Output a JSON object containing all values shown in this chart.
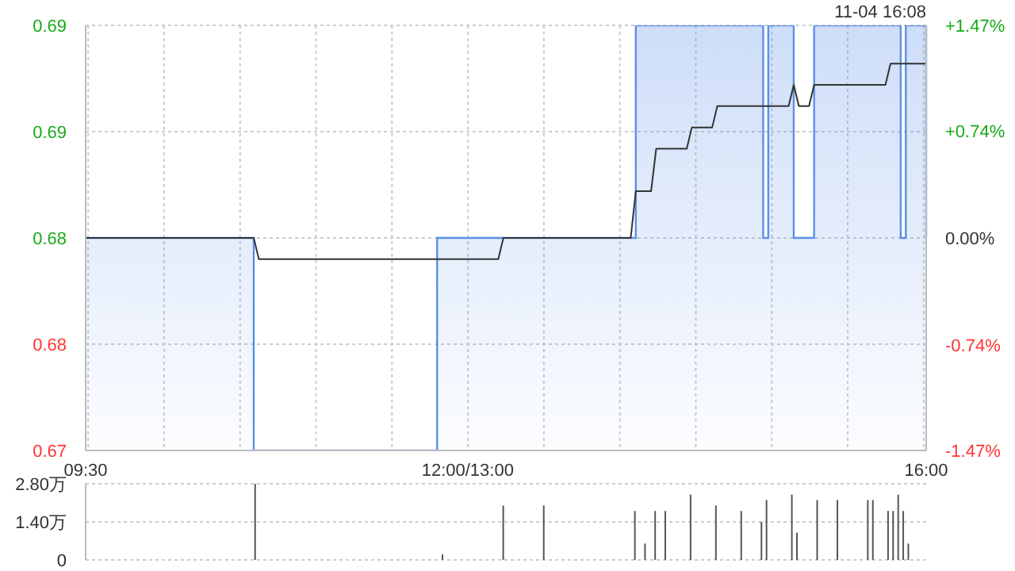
{
  "chart_data": [
    {
      "type": "area",
      "annotations": [
        "11-04 16:08"
      ],
      "categories": [
        "09:30",
        null,
        null,
        null,
        null,
        null,
        null,
        null,
        null,
        null,
        null,
        null,
        null,
        null,
        null,
        null,
        null,
        null,
        null,
        null,
        null,
        null,
        null,
        null,
        null,
        null,
        null,
        null,
        null,
        null,
        null,
        null,
        null,
        null,
        null,
        null,
        null,
        null,
        null,
        null,
        null,
        null,
        null,
        null,
        null,
        null,
        null,
        null,
        null,
        null,
        null,
        null,
        null,
        null,
        null,
        null,
        null,
        null,
        null,
        null,
        null,
        null,
        null,
        null,
        null,
        null,
        null,
        null,
        null,
        null,
        null,
        null,
        null,
        null,
        null,
        "12:00/13:00",
        null,
        null,
        null,
        null,
        null,
        null,
        null,
        null,
        null,
        null,
        null,
        null,
        null,
        null,
        null,
        null,
        null,
        null,
        null,
        null,
        null,
        null,
        null,
        null,
        null,
        null,
        null,
        null,
        null,
        null,
        null,
        null,
        null,
        null,
        null,
        null,
        null,
        null,
        null,
        null,
        null,
        null,
        null,
        null,
        null,
        null,
        null,
        null,
        null,
        null,
        null,
        null,
        null,
        null,
        null,
        null,
        null,
        null,
        null,
        null,
        null,
        null,
        null,
        null,
        null,
        null,
        null,
        null,
        null,
        null,
        null,
        null,
        null,
        null,
        null,
        null,
        null,
        null,
        null,
        null,
        null,
        null,
        null,
        null,
        null,
        null,
        null,
        null,
        null,
        "16:00"
      ],
      "ylim": [
        0.67,
        0.69
      ],
      "yticks": [
        {
          "value": 0.67,
          "label": "0.67"
        },
        {
          "value": 0.675,
          "label": "0.68"
        },
        {
          "value": 0.68,
          "label": "0.68"
        },
        {
          "value": 0.685,
          "label": "0.69"
        },
        {
          "value": 0.69,
          "label": "0.69"
        }
      ],
      "y2lim": [
        -1.47,
        1.47
      ],
      "y2ticks": [
        {
          "value": -1.47,
          "label": "-1.47%"
        },
        {
          "value": -0.74,
          "label": "-0.74%"
        },
        {
          "value": 0,
          "label": "0.00%"
        },
        {
          "value": 0.74,
          "label": "+0.74%"
        },
        {
          "value": 1.47,
          "label": "+1.47%"
        }
      ],
      "grid": true,
      "series": [
        {
          "color": "#5b8fe8",
          "values": [
            0.68,
            0.68,
            0.68,
            0.68,
            0.68,
            0.68,
            0.68,
            0.68,
            0.68,
            0.68,
            0.68,
            0.68,
            0.68,
            0.68,
            0.68,
            0.68,
            0.68,
            0.68,
            0.68,
            0.68,
            0.68,
            0.68,
            0.68,
            0.68,
            0.68,
            0.68,
            0.68,
            0.68,
            0.68,
            0.68,
            0.68,
            0.68,
            0.68,
            0.67,
            0.67,
            0.67,
            0.67,
            0.67,
            0.67,
            0.67,
            0.67,
            0.67,
            0.67,
            0.67,
            0.67,
            0.67,
            0.67,
            0.67,
            0.67,
            0.67,
            0.67,
            0.67,
            0.67,
            0.67,
            0.67,
            0.67,
            0.67,
            0.67,
            0.67,
            0.67,
            0.67,
            0.67,
            0.67,
            0.67,
            0.67,
            0.67,
            0.67,
            0.67,
            0.67,
            0.68,
            0.68,
            0.68,
            0.68,
            0.68,
            0.68,
            0.68,
            0.68,
            0.68,
            0.68,
            0.68,
            0.68,
            0.68,
            0.68,
            0.68,
            0.68,
            0.68,
            0.68,
            0.68,
            0.68,
            0.68,
            0.68,
            0.68,
            0.68,
            0.68,
            0.68,
            0.68,
            0.68,
            0.68,
            0.68,
            0.68,
            0.68,
            0.68,
            0.68,
            0.68,
            0.68,
            0.68,
            0.68,
            0.68,
            0.69,
            0.69,
            0.69,
            0.69,
            0.69,
            0.69,
            0.69,
            0.69,
            0.69,
            0.69,
            0.69,
            0.69,
            0.69,
            0.69,
            0.69,
            0.69,
            0.69,
            0.69,
            0.69,
            0.69,
            0.69,
            0.69,
            0.69,
            0.69,
            0.69,
            0.68,
            0.69,
            0.69,
            0.69,
            0.69,
            0.69,
            0.68,
            0.68,
            0.68,
            0.68,
            0.69,
            0.69,
            0.69,
            0.69,
            0.69,
            0.69,
            0.69,
            0.69,
            0.69,
            0.69,
            0.69,
            0.69,
            0.69,
            0.69,
            0.69,
            0.69,
            0.69,
            0.68,
            0.69,
            0.69,
            0.69,
            0.69,
            0.68
          ]
        },
        {
          "type": "line",
          "color": "#333333",
          "values": [
            0.68,
            0.68,
            0.68,
            0.68,
            0.68,
            0.68,
            0.68,
            0.68,
            0.68,
            0.68,
            0.68,
            0.68,
            0.68,
            0.68,
            0.68,
            0.68,
            0.68,
            0.68,
            0.68,
            0.68,
            0.68,
            0.68,
            0.68,
            0.68,
            0.68,
            0.68,
            0.68,
            0.68,
            0.68,
            0.68,
            0.68,
            0.68,
            0.68,
            0.68,
            0.679,
            0.679,
            0.679,
            0.679,
            0.679,
            0.679,
            0.679,
            0.679,
            0.679,
            0.679,
            0.679,
            0.679,
            0.679,
            0.679,
            0.679,
            0.679,
            0.679,
            0.679,
            0.679,
            0.679,
            0.679,
            0.679,
            0.679,
            0.679,
            0.679,
            0.679,
            0.679,
            0.679,
            0.679,
            0.679,
            0.679,
            0.679,
            0.679,
            0.679,
            0.679,
            0.679,
            0.679,
            0.679,
            0.679,
            0.679,
            0.679,
            0.679,
            0.679,
            0.679,
            0.679,
            0.679,
            0.679,
            0.679,
            0.68,
            0.68,
            0.68,
            0.68,
            0.68,
            0.68,
            0.68,
            0.68,
            0.68,
            0.68,
            0.68,
            0.68,
            0.68,
            0.68,
            0.68,
            0.68,
            0.68,
            0.68,
            0.68,
            0.68,
            0.68,
            0.68,
            0.68,
            0.68,
            0.68,
            0.68,
            0.6822,
            0.6822,
            0.6822,
            0.6822,
            0.6842,
            0.6842,
            0.6842,
            0.6842,
            0.6842,
            0.6842,
            0.6842,
            0.6852,
            0.6852,
            0.6852,
            0.6852,
            0.6852,
            0.6862,
            0.6862,
            0.6862,
            0.6862,
            0.6862,
            0.6862,
            0.6862,
            0.6862,
            0.6862,
            0.6862,
            0.6862,
            0.6862,
            0.6862,
            0.6862,
            0.6862,
            0.6872,
            0.6862,
            0.6862,
            0.6862,
            0.6872,
            0.6872,
            0.6872,
            0.6872,
            0.6872,
            0.6872,
            0.6872,
            0.6872,
            0.6872,
            0.6872,
            0.6872,
            0.6872,
            0.6872,
            0.6872,
            0.6872,
            0.6882,
            0.6882,
            0.6882,
            0.6882,
            0.6882,
            0.6882,
            0.6882,
            0.6882
          ]
        }
      ]
    },
    {
      "type": "bar",
      "color": "#555555",
      "tick_labels": "y",
      "grid": "y",
      "categories": [
        null,
        null,
        null,
        null,
        null,
        null,
        null,
        null,
        null,
        null,
        null,
        null,
        null,
        null,
        null,
        null,
        null,
        null,
        null,
        null,
        null,
        null,
        null,
        null,
        null,
        null,
        null,
        null,
        null,
        null,
        null,
        null,
        null,
        null,
        null,
        null,
        null,
        null,
        null,
        null,
        null,
        null,
        null,
        null,
        null,
        null,
        null,
        null,
        null,
        null,
        null,
        null,
        null,
        null,
        null,
        null,
        null,
        null,
        null,
        null,
        null,
        null,
        null,
        null,
        null,
        null,
        null,
        null,
        null,
        null,
        null,
        null,
        null,
        null,
        null,
        null,
        null,
        null,
        null,
        null,
        null,
        null,
        null,
        null,
        null,
        null,
        null,
        null,
        null,
        null,
        null,
        null,
        null,
        null,
        null,
        null,
        null,
        null,
        null,
        null,
        null,
        null,
        null,
        null,
        null,
        null,
        null,
        null,
        null,
        null,
        null,
        null,
        null,
        null,
        null,
        null,
        null,
        null,
        null,
        null,
        null,
        null,
        null,
        null,
        null,
        null,
        null,
        null,
        null,
        null,
        null,
        null,
        null,
        null,
        null,
        null,
        null,
        null,
        null,
        null,
        null,
        null,
        null,
        null,
        null,
        null,
        null,
        null,
        null,
        null,
        null,
        null,
        null,
        null,
        null,
        null,
        null,
        null,
        null,
        null,
        null,
        null,
        null,
        null,
        null,
        null
      ],
      "ylim": [
        0,
        2.8
      ],
      "yticks": [
        0,
        {
          "value": 1.4,
          "label": "1.40万"
        },
        {
          "value": 2.8,
          "label": "2.80万"
        }
      ],
      "values": [
        null,
        null,
        null,
        null,
        null,
        null,
        null,
        null,
        null,
        null,
        null,
        null,
        null,
        null,
        null,
        null,
        null,
        null,
        null,
        null,
        null,
        null,
        null,
        null,
        null,
        null,
        null,
        null,
        null,
        null,
        null,
        null,
        null,
        2.8,
        null,
        null,
        null,
        null,
        null,
        null,
        null,
        null,
        null,
        null,
        null,
        null,
        null,
        null,
        null,
        null,
        null,
        null,
        null,
        null,
        null,
        null,
        null,
        null,
        null,
        null,
        null,
        null,
        null,
        null,
        null,
        null,
        null,
        null,
        null,
        null,
        0.2,
        null,
        null,
        null,
        null,
        null,
        null,
        null,
        null,
        null,
        null,
        null,
        2.0,
        null,
        null,
        null,
        null,
        null,
        null,
        null,
        2.0,
        null,
        null,
        null,
        null,
        null,
        null,
        null,
        null,
        null,
        null,
        null,
        null,
        null,
        null,
        null,
        null,
        null,
        1.8,
        null,
        0.6,
        null,
        1.8,
        null,
        1.8,
        null,
        null,
        null,
        null,
        2.4,
        null,
        null,
        null,
        null,
        2.0,
        null,
        null,
        null,
        null,
        1.8,
        null,
        null,
        null,
        1.4,
        2.2,
        null,
        null,
        null,
        null,
        2.4,
        1.0,
        null,
        null,
        null,
        2.2,
        null,
        null,
        null,
        2.2,
        null,
        null,
        null,
        null,
        null,
        2.2,
        2.2,
        null,
        null,
        1.8,
        1.8,
        2.4,
        1.8,
        0.6,
        null,
        null,
        null
      ]
    }
  ]
}
